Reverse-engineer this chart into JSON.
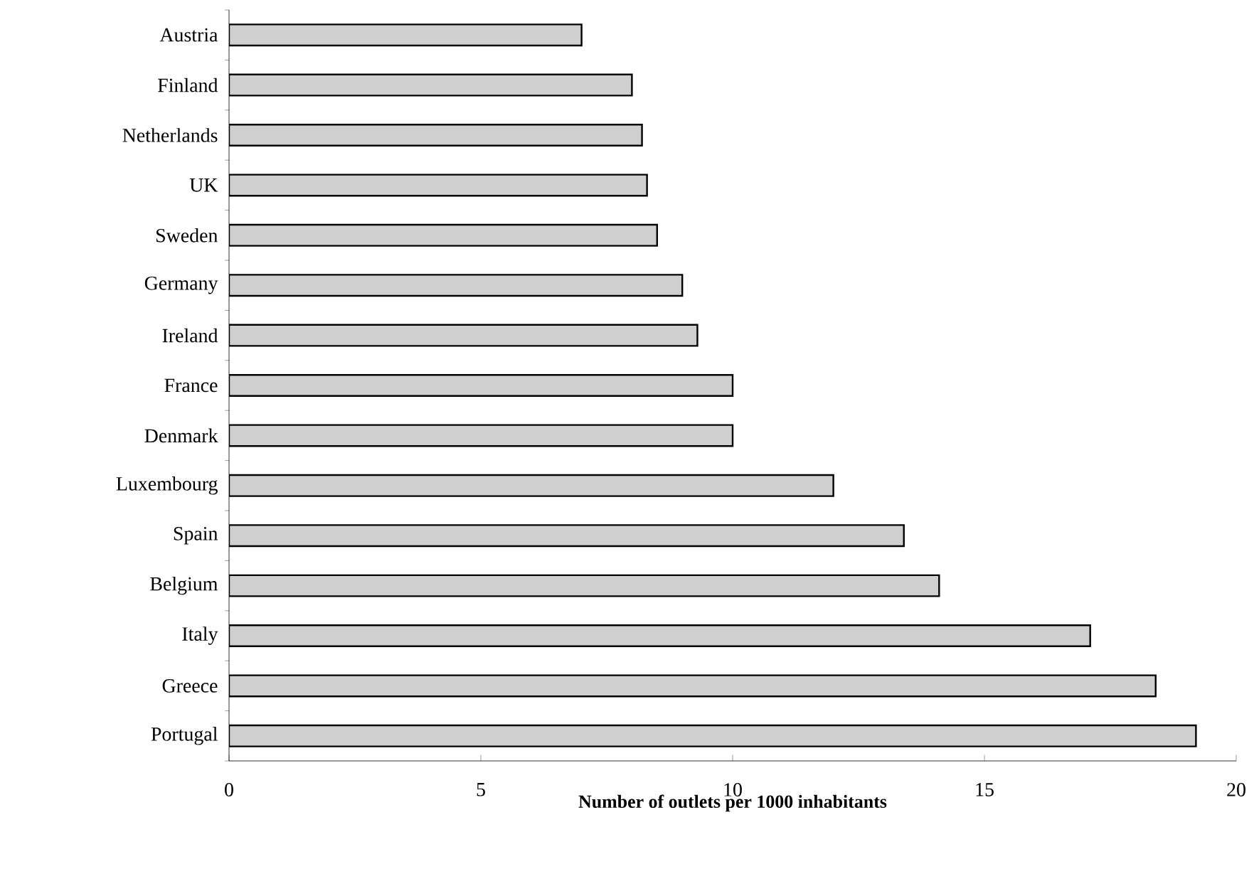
{
  "chart_data": {
    "type": "bar",
    "orientation": "horizontal",
    "xlabel": "Number of outlets per 1000 inhabitants",
    "categories": [
      "Austria",
      "Finland",
      "Netherlands",
      "UK",
      "Sweden",
      "Germany",
      "Ireland",
      "France",
      "Denmark",
      "Luxembourg",
      "Spain",
      "Belgium",
      "Italy",
      "Greece",
      "Portugal"
    ],
    "values": [
      7.0,
      8.0,
      8.2,
      8.3,
      8.5,
      9.0,
      9.3,
      10.0,
      10.0,
      12.0,
      13.4,
      14.1,
      17.1,
      18.4,
      19.2
    ],
    "color": "#cfcfcf",
    "xlim": [
      0,
      20
    ],
    "xticks": [
      0,
      5,
      10,
      15,
      20
    ],
    "grid": false
  }
}
